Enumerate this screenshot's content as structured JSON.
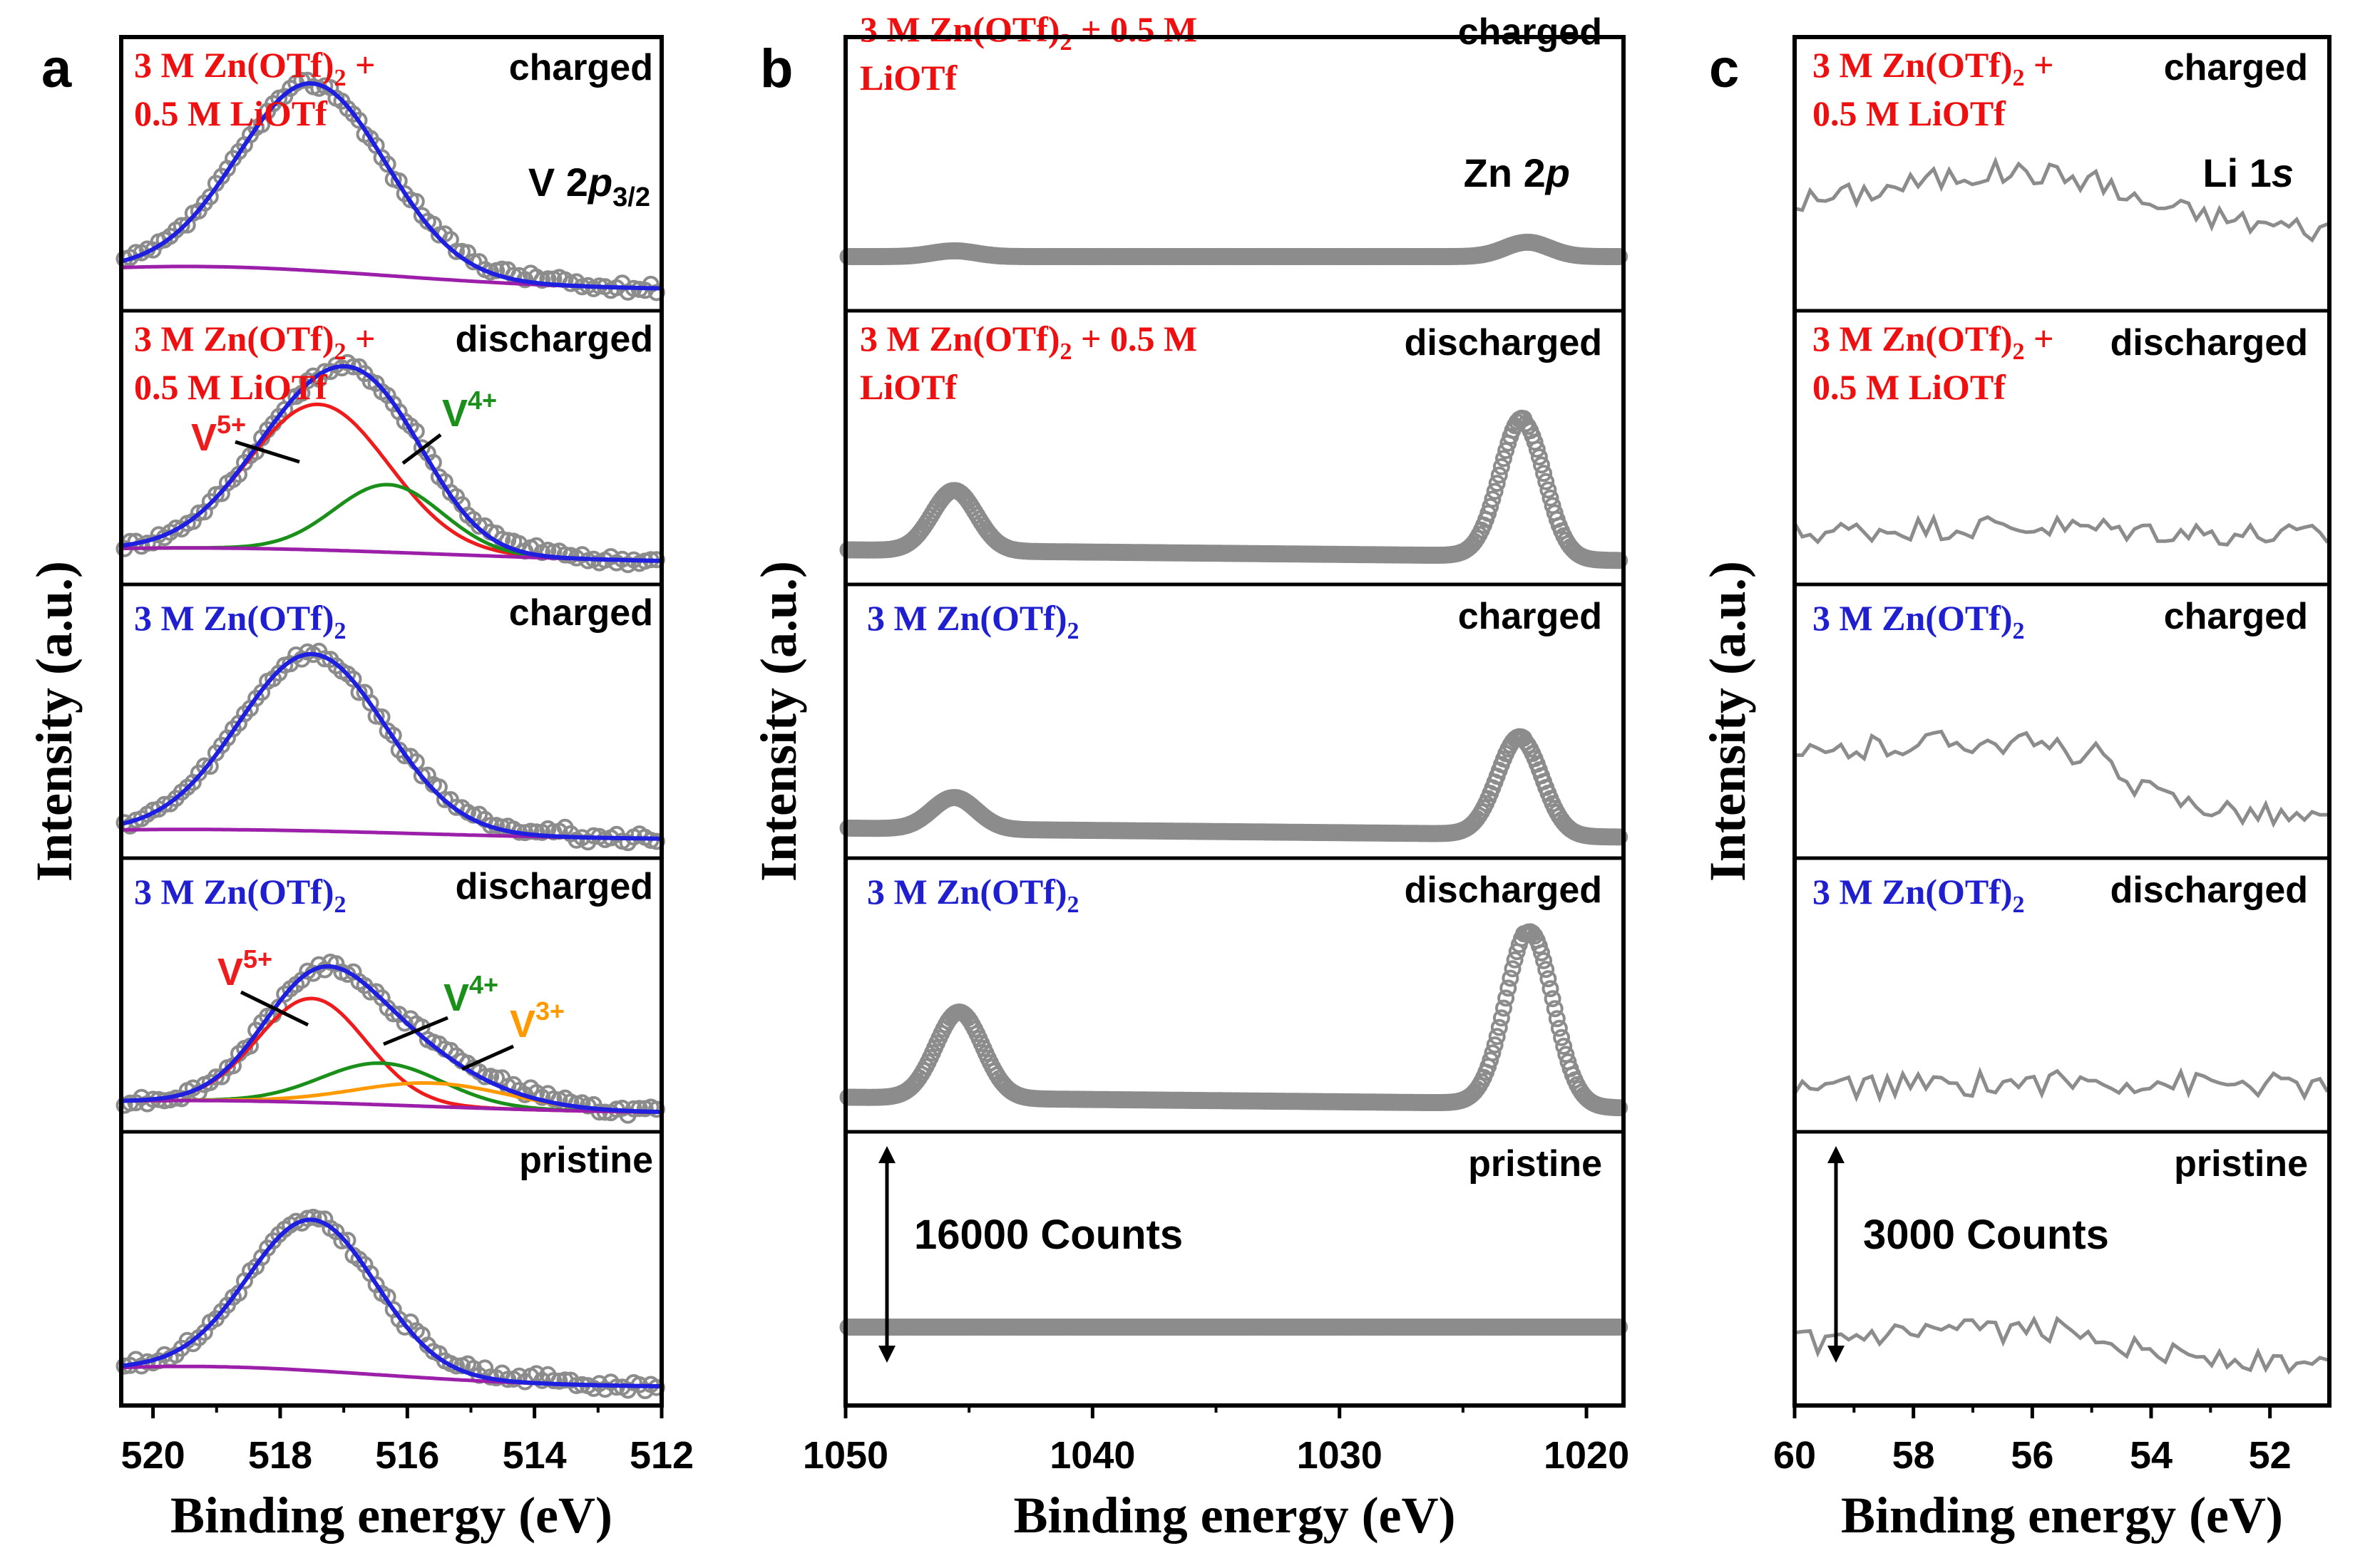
{
  "colors": {
    "data": "#8c8c8c",
    "fit": "#1f1fe0",
    "background": "#9b1fa8",
    "v5": "#ee1c1c",
    "v4": "#1a8f1a",
    "v3": "#ff9900",
    "li_label": "#ee1010",
    "zn_label": "#1f1fd0"
  },
  "chart_data": [
    {
      "panel": "a",
      "type": "line",
      "xlabel": "Binding energy (eV)",
      "ylabel": "Intensity (a.u.)",
      "xlim": [
        520.5,
        512
      ],
      "xticks": [
        520,
        518,
        516,
        514,
        512
      ],
      "core_level": {
        "element": "V",
        "orbital": "2p",
        "sub": "3/2"
      },
      "subpanels": [
        {
          "state": "charged",
          "electrolyte": [
            "3 M Zn(OTf)",
            " +"
          ],
          "electrolyte2": "0.5 M LiOTf",
          "electrolyte_color": "li",
          "fit_peaks": [
            {
              "center": 517.5,
              "height": 0.72,
              "width": 1.15
            }
          ],
          "background": {
            "height": 0.09,
            "center": 519.5,
            "width": 3.2,
            "base": 0.02
          }
        },
        {
          "state": "discharged",
          "electrolyte": [
            "3 M Zn(OTf)",
            " +"
          ],
          "electrolyte2": "0.5 M LiOTf",
          "electrolyte_color": "li",
          "species": [
            {
              "label": "V",
              "charge": "5+",
              "color": "v5",
              "center": 517.4,
              "height": 0.56,
              "width": 1.1
            },
            {
              "label": "V",
              "charge": "4+",
              "color": "v4",
              "center": 516.3,
              "height": 0.26,
              "width": 0.85
            }
          ],
          "background": {
            "height": 0.06,
            "center": 519.5,
            "width": 4.0,
            "base": 0.02
          }
        },
        {
          "state": "charged",
          "electrolyte": [
            "3 M Zn(OTf)",
            ""
          ],
          "electrolyte_color": "zn",
          "fit_peaks": [
            {
              "center": 517.5,
              "height": 0.68,
              "width": 1.15
            }
          ],
          "background": {
            "height": 0.04,
            "center": 519.5,
            "width": 3.6,
            "base": 0.01
          }
        },
        {
          "state": "discharged",
          "electrolyte": [
            "3 M Zn(OTf)",
            ""
          ],
          "electrolyte_color": "zn",
          "species": [
            {
              "label": "V",
              "charge": "5+",
              "color": "v5",
              "center": 517.5,
              "height": 0.4,
              "width": 0.85
            },
            {
              "label": "V",
              "charge": "4+",
              "color": "v4",
              "center": 516.4,
              "height": 0.16,
              "width": 0.95
            },
            {
              "label": "V",
              "charge": "3+",
              "color": "v3",
              "center": 515.6,
              "height": 0.09,
              "width": 1.2
            }
          ],
          "background": {
            "height": 0.05,
            "center": 519.5,
            "width": 3.5,
            "base": 0.01
          }
        },
        {
          "state": "pristine",
          "fit_peaks": [
            {
              "center": 517.5,
              "height": 0.58,
              "width": 1.0
            }
          ],
          "background": {
            "height": 0.08,
            "center": 519.5,
            "width": 3.0,
            "base": 0.01
          }
        }
      ]
    },
    {
      "panel": "b",
      "type": "scatter",
      "xlabel": "Binding energy (eV)",
      "ylabel": "Intensity (a.u.)",
      "xlim": [
        1050,
        1018.5
      ],
      "xticks": [
        1050,
        1040,
        1030,
        1020
      ],
      "core_level": {
        "element": "Zn",
        "orbital": "2p"
      },
      "scale_bar": "16000 Counts",
      "subpanels": [
        {
          "state": "charged",
          "electrolyte": [
            "3 M Zn(OTf)",
            " + 0.5 M"
          ],
          "electrolyte2": "LiOTf",
          "electrolyte_color": "li",
          "peaks": [
            {
              "center": 1045.6,
              "height": 0.02,
              "width": 0.9
            },
            {
              "center": 1022.4,
              "height": 0.05,
              "width": 0.9
            }
          ],
          "baseline": 0.0
        },
        {
          "state": "discharged",
          "electrolyte": [
            "3 M Zn(OTf)",
            " + 0.5 M"
          ],
          "electrolyte2": "LiOTf",
          "electrolyte_color": "li",
          "peaks": [
            {
              "center": 1045.6,
              "height": 0.21,
              "width": 0.9
            },
            {
              "center": 1022.6,
              "height": 0.48,
              "width": 0.9
            }
          ],
          "baseline": 0.02
        },
        {
          "state": "charged",
          "electrolyte": [
            "3 M Zn(OTf)",
            ""
          ],
          "electrolyte_color": "zn",
          "peaks": [
            {
              "center": 1045.6,
              "height": 0.11,
              "width": 0.9
            },
            {
              "center": 1022.7,
              "height": 0.34,
              "width": 0.9
            }
          ],
          "baseline": 0.01
        },
        {
          "state": "discharged",
          "electrolyte": [
            "3 M Zn(OTf)",
            ""
          ],
          "electrolyte_color": "zn",
          "peaks": [
            {
              "center": 1045.4,
              "height": 0.3,
              "width": 0.95
            },
            {
              "center": 1022.3,
              "height": 0.61,
              "width": 0.95
            }
          ],
          "baseline": 0.02
        },
        {
          "state": "pristine",
          "peaks": [],
          "baseline": 0.0
        }
      ]
    },
    {
      "panel": "c",
      "type": "line",
      "xlabel": "Binding energy (eV)",
      "ylabel": "Intensity (a.u.)",
      "xlim": [
        60,
        51
      ],
      "xticks": [
        60,
        58,
        56,
        54,
        52
      ],
      "core_level": {
        "element": "Li",
        "orbital": "1s"
      },
      "scale_bar": "3000 Counts",
      "subpanels": [
        {
          "state": "charged",
          "electrolyte": [
            "3 M Zn(OTf)",
            " +"
          ],
          "electrolyte2": "0.5 M LiOTf",
          "electrolyte_color": "li",
          "bump": {
            "center": 56.3,
            "height": 0.14,
            "width": 2.0
          },
          "level": 0.32,
          "tilt": -0.02
        },
        {
          "state": "discharged",
          "electrolyte": [
            "3 M Zn(OTf)",
            " +"
          ],
          "electrolyte2": "0.5 M LiOTf",
          "electrolyte_color": "li",
          "bump": {
            "center": 56.5,
            "height": 0.04,
            "width": 2.5
          },
          "level": 0.12,
          "tilt": 0.0
        },
        {
          "state": "charged",
          "electrolyte": [
            "3 M Zn(OTf)",
            ""
          ],
          "electrolyte_color": "zn",
          "bump": {
            "center": 57.0,
            "height": 0.11,
            "width": 2.0
          },
          "level": 0.28,
          "tilt": -0.05
        },
        {
          "state": "discharged",
          "electrolyte": [
            "3 M Zn(OTf)",
            ""
          ],
          "electrolyte_color": "zn",
          "bump": {
            "center": 55.0,
            "height": 0.03,
            "width": 3.0
          },
          "level": 0.1,
          "tilt": 0.0
        },
        {
          "state": "pristine",
          "bump": {
            "center": 56.0,
            "height": 0.07,
            "width": 2.2
          },
          "level": 0.16,
          "tilt": -0.02
        }
      ]
    }
  ]
}
